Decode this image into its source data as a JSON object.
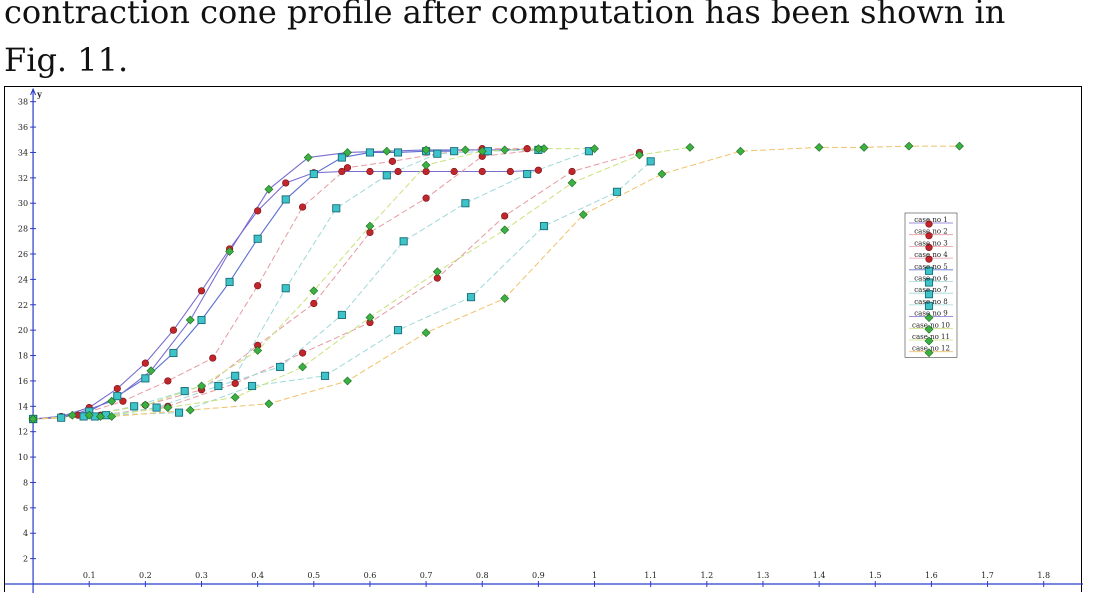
{
  "text": {
    "line1": "contraction cone profile after computation has been shown in",
    "line2": "Fig. 11."
  },
  "chart_data": {
    "type": "scatter",
    "title": "",
    "xlabel": "",
    "ylabel": "y",
    "xlim": [
      -0.05,
      1.87
    ],
    "ylim": [
      0,
      39
    ],
    "x_ticks": [
      "0.1",
      "0.2",
      "0.3",
      "0.4",
      "0.5",
      "0.6",
      "0.7",
      "0.8",
      "0.9",
      "1",
      "1.1",
      "1.2",
      "1.3",
      "1.4",
      "1.5",
      "1.6",
      "1.7",
      "1.8"
    ],
    "y_ticks": [
      "2",
      "4",
      "6",
      "8",
      "10",
      "12",
      "14",
      "16",
      "18",
      "20",
      "22",
      "24",
      "26",
      "28",
      "30",
      "32",
      "34",
      "36",
      "38"
    ],
    "legend_placement": "right",
    "grid": false,
    "series": [
      {
        "name": "case no 1",
        "color": "#7a6fd0",
        "marker": "circle",
        "marker_color": "#c0262b",
        "x": [
          0,
          0.05,
          0.1,
          0.15,
          0.2,
          0.25,
          0.3,
          0.35,
          0.4,
          0.45,
          0.5,
          0.55,
          0.6,
          0.65,
          0.7,
          0.75,
          0.8,
          0.85,
          0.9
        ],
        "y": [
          13,
          13.2,
          13.9,
          15.4,
          17.4,
          20,
          23.1,
          26.4,
          29.4,
          31.6,
          32.4,
          32.5,
          32.5,
          32.5,
          32.5,
          32.5,
          32.5,
          32.5,
          32.6
        ]
      },
      {
        "name": "case no 2",
        "color": "#e69aa2",
        "marker": "circle",
        "marker_color": "#c0262b",
        "x": [
          0,
          0.08,
          0.16,
          0.24,
          0.32,
          0.4,
          0.48,
          0.56,
          0.64,
          0.72,
          0.8,
          0.88
        ],
        "y": [
          13,
          13.3,
          14.4,
          16,
          17.8,
          23.5,
          29.7,
          32.8,
          33.3,
          33.9,
          34.3,
          34.3
        ]
      },
      {
        "name": "case no 3",
        "color": "#e69aa2",
        "marker": "circle",
        "marker_color": "#c0262b",
        "x": [
          0,
          0.1,
          0.2,
          0.3,
          0.4,
          0.5,
          0.6,
          0.7,
          0.8,
          0.9
        ],
        "y": [
          13,
          13.3,
          14.1,
          15.3,
          18.8,
          22.1,
          27.7,
          30.4,
          33.7,
          34.2
        ]
      },
      {
        "name": "case no 4",
        "color": "#e69aa2",
        "marker": "circle",
        "marker_color": "#c0262b",
        "x": [
          0,
          0.12,
          0.24,
          0.36,
          0.48,
          0.6,
          0.72,
          0.84,
          0.96,
          1.08
        ],
        "y": [
          13,
          13.3,
          14,
          15.8,
          18.2,
          20.6,
          24.1,
          29,
          32.5,
          34
        ]
      },
      {
        "name": "case no 5",
        "color": "#5a6fd0",
        "marker": "square",
        "marker_color": "#3cc4c8",
        "x": [
          0,
          0.05,
          0.1,
          0.15,
          0.2,
          0.25,
          0.3,
          0.35,
          0.4,
          0.45,
          0.5,
          0.55,
          0.6,
          0.65,
          0.7,
          0.75
        ],
        "y": [
          13,
          13.1,
          13.6,
          14.8,
          16.2,
          18.2,
          20.8,
          23.8,
          27.2,
          30.3,
          32.3,
          33.6,
          34,
          34,
          34.1,
          34.1
        ]
      },
      {
        "name": "case no 6",
        "color": "#9fd8d8",
        "marker": "square",
        "marker_color": "#3cc4c8",
        "x": [
          0,
          0.09,
          0.18,
          0.27,
          0.36,
          0.45,
          0.54,
          0.63,
          0.72,
          0.81,
          0.9
        ],
        "y": [
          13,
          13.2,
          14,
          15.2,
          16.4,
          23.3,
          29.6,
          32.2,
          33.9,
          34.1,
          34.2
        ]
      },
      {
        "name": "case no 7",
        "color": "#9fd8d8",
        "marker": "square",
        "marker_color": "#3cc4c8",
        "x": [
          0,
          0.11,
          0.22,
          0.33,
          0.44,
          0.55,
          0.66,
          0.77,
          0.88,
          0.99
        ],
        "y": [
          13,
          13.2,
          13.9,
          15.6,
          17.1,
          21.2,
          27,
          30,
          32.3,
          34.1
        ]
      },
      {
        "name": "case no 8",
        "color": "#9fd8d8",
        "marker": "square",
        "marker_color": "#3cc4c8",
        "x": [
          0,
          0.13,
          0.26,
          0.39,
          0.52,
          0.65,
          0.78,
          0.91,
          1.04,
          1.1
        ],
        "y": [
          13,
          13.3,
          13.5,
          15.6,
          16.4,
          20,
          22.6,
          28.2,
          30.9,
          33.3
        ]
      },
      {
        "name": "case no 9",
        "color": "#7a6fd0",
        "marker": "diamond",
        "marker_color": "#3cb043",
        "x": [
          0,
          0.07,
          0.14,
          0.21,
          0.28,
          0.35,
          0.42,
          0.49,
          0.56,
          0.63,
          0.7,
          0.77,
          0.84,
          0.91
        ],
        "y": [
          13,
          13.3,
          14.4,
          16.8,
          20.8,
          26.2,
          31.1,
          33.6,
          34,
          34.1,
          34.2,
          34.2,
          34.2,
          34.3
        ]
      },
      {
        "name": "case no 10",
        "color": "#c9e27a",
        "marker": "diamond",
        "marker_color": "#3cb043",
        "x": [
          0,
          0.1,
          0.2,
          0.3,
          0.4,
          0.5,
          0.6,
          0.7,
          0.8,
          0.9,
          1
        ],
        "y": [
          13,
          13.3,
          14.1,
          15.6,
          18.4,
          23.1,
          28.2,
          33,
          34.1,
          34.3,
          34.3
        ]
      },
      {
        "name": "case no 11",
        "color": "#c9e27a",
        "marker": "diamond",
        "marker_color": "#3cb043",
        "x": [
          0,
          0.12,
          0.24,
          0.36,
          0.48,
          0.6,
          0.72,
          0.84,
          0.96,
          1.08,
          1.17
        ],
        "y": [
          13,
          13.2,
          13.9,
          14.7,
          17.1,
          21,
          24.6,
          27.9,
          31.6,
          33.8,
          34.4
        ]
      },
      {
        "name": "case no 12",
        "color": "#f0c26a",
        "marker": "diamond",
        "marker_color": "#3cb043",
        "x": [
          0,
          0.14,
          0.28,
          0.42,
          0.56,
          0.7,
          0.84,
          0.98,
          1.12,
          1.26,
          1.4,
          1.48,
          1.56,
          1.65
        ],
        "y": [
          13,
          13.2,
          13.7,
          14.2,
          16,
          19.8,
          22.5,
          29.1,
          32.3,
          34.1,
          34.4,
          34.4,
          34.5,
          34.5
        ]
      }
    ]
  }
}
